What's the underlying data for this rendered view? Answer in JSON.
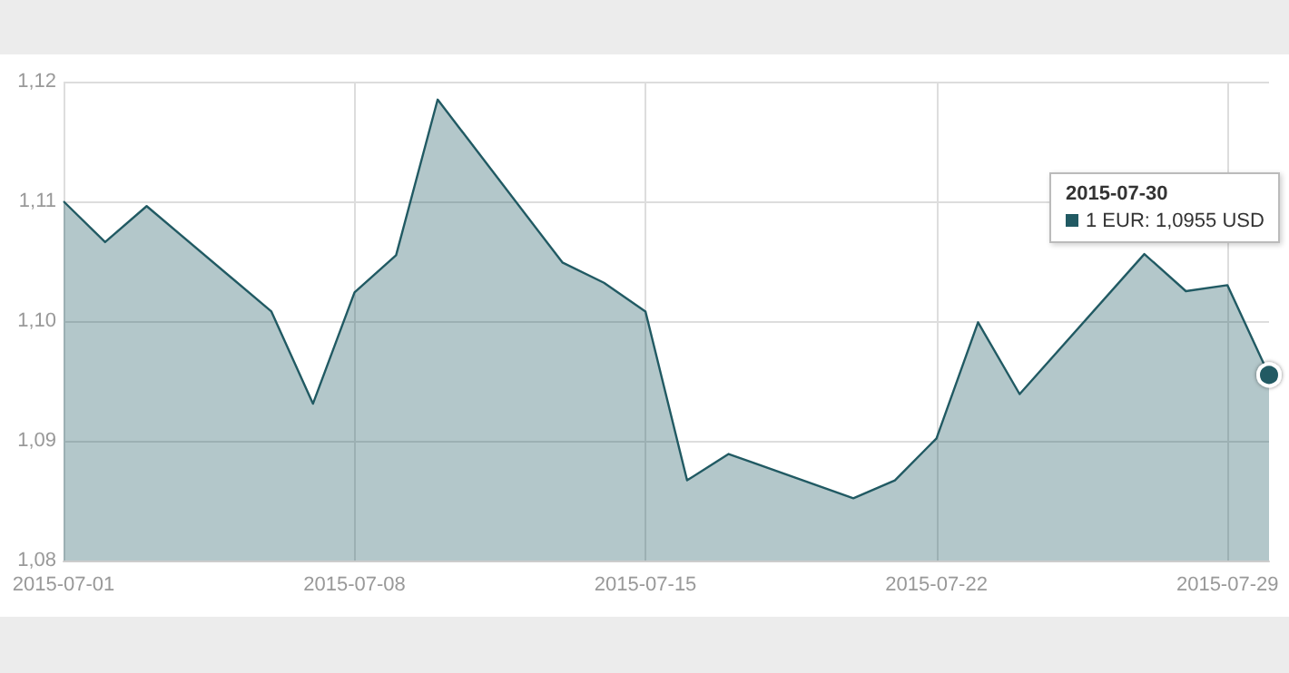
{
  "chart_data": {
    "type": "area",
    "x": [
      "2015-07-01",
      "2015-07-02",
      "2015-07-03",
      "2015-07-06",
      "2015-07-07",
      "2015-07-08",
      "2015-07-09",
      "2015-07-10",
      "2015-07-13",
      "2015-07-14",
      "2015-07-15",
      "2015-07-16",
      "2015-07-17",
      "2015-07-20",
      "2015-07-21",
      "2015-07-22",
      "2015-07-23",
      "2015-07-24",
      "2015-07-27",
      "2015-07-28",
      "2015-07-29",
      "2015-07-30"
    ],
    "series": [
      {
        "color": "#215a63",
        "values": [
          1.11,
          1.1066,
          1.1096,
          1.1008,
          1.0931,
          1.1024,
          1.1055,
          1.1185,
          1.1049,
          1.1032,
          1.1008,
          1.0867,
          1.0889,
          1.0852,
          1.0867,
          1.0902,
          1.0999,
          1.0939,
          1.1056,
          1.1025,
          1.103,
          1.0955
        ]
      }
    ],
    "xlim": [
      "2015-07-01",
      "2015-07-30"
    ],
    "xticks": [
      "2015-07-01",
      "2015-07-08",
      "2015-07-15",
      "2015-07-22",
      "2015-07-29"
    ],
    "ylim": [
      1.08,
      1.12
    ],
    "yticks": [
      {
        "value": 1.08,
        "label": "1,08"
      },
      {
        "value": 1.09,
        "label": "1,09"
      },
      {
        "value": 1.1,
        "label": "1,10"
      },
      {
        "value": 1.11,
        "label": "1,11"
      },
      {
        "value": 1.12,
        "label": "1,12"
      }
    ],
    "grid": true,
    "annotations": [
      "2015-07-30",
      "1 EUR: 1,0955 USD"
    ]
  }
}
